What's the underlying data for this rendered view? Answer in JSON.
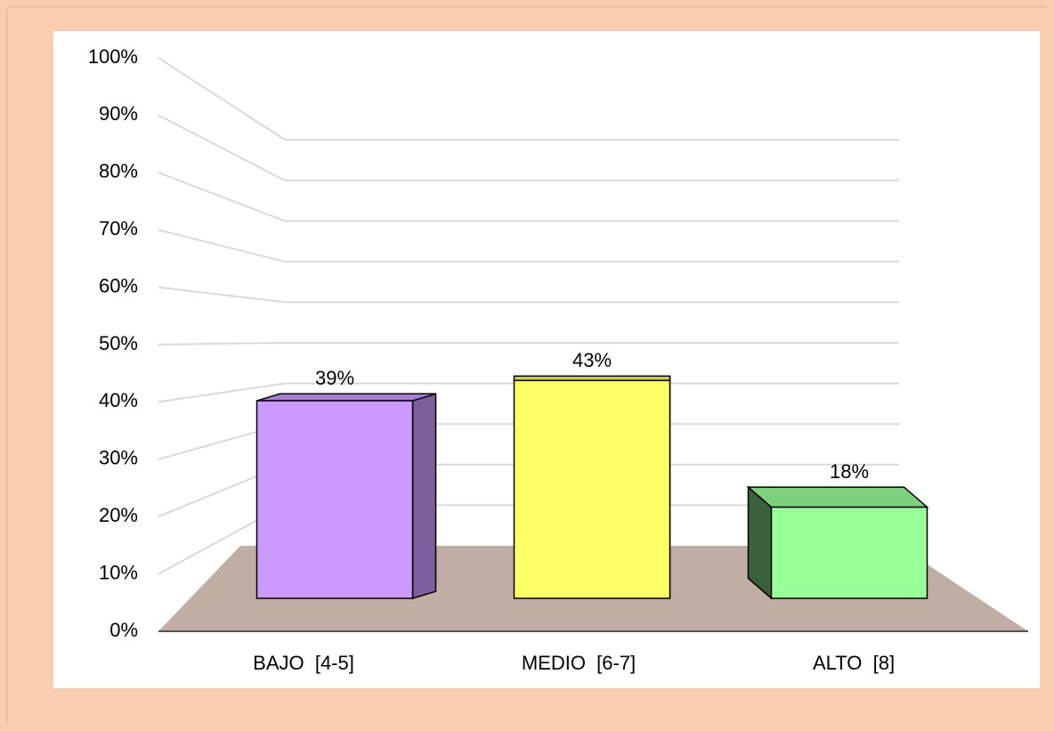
{
  "chart_data": {
    "type": "bar3d",
    "categories": [
      "BAJO  [4-5]",
      "MEDIO  [6-7]",
      "ALTO  [8]"
    ],
    "values": [
      39,
      43,
      18
    ],
    "value_labels": [
      "39%",
      "43%",
      "18%"
    ],
    "colors": [
      "#cc99ff",
      "#ffff66",
      "#99ff99"
    ],
    "ylim": [
      0,
      100
    ],
    "yticks": [
      {
        "value": 0,
        "label": "0%"
      },
      {
        "value": 10,
        "label": "10%"
      },
      {
        "value": 20,
        "label": "20%"
      },
      {
        "value": 30,
        "label": "30%"
      },
      {
        "value": 40,
        "label": "40%"
      },
      {
        "value": 50,
        "label": "50%"
      },
      {
        "value": 60,
        "label": "60%"
      },
      {
        "value": 70,
        "label": "70%"
      },
      {
        "value": 80,
        "label": "80%"
      },
      {
        "value": 90,
        "label": "90%"
      },
      {
        "value": 100,
        "label": "100%"
      }
    ],
    "grid": true
  }
}
